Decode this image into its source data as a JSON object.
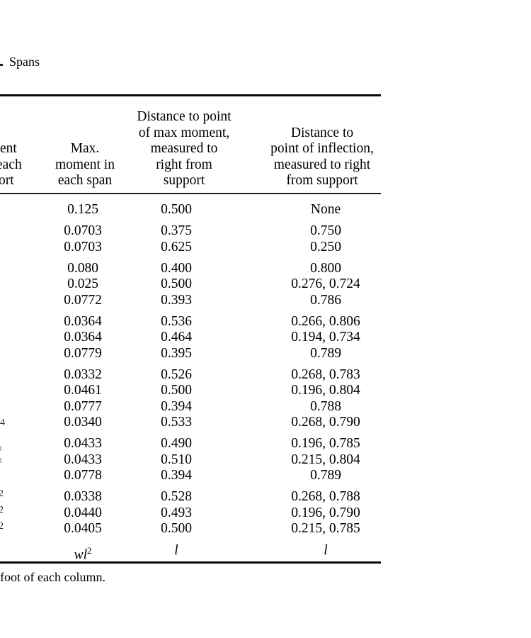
{
  "page": {
    "title_fragment": "Spans",
    "footnote_fragment": "foot of each column."
  },
  "table": {
    "header": {
      "col1_clipped_lines": [
        "ent",
        "each",
        "ort"
      ],
      "col2_lines": [
        "Max.",
        "moment in",
        "each span"
      ],
      "col3_lines": [
        "Distance to point",
        "of max moment,",
        "measured to",
        "right from",
        "support"
      ],
      "col4_lines": [
        "Distance to",
        "point of inflection,",
        "measured to right",
        "from support"
      ]
    },
    "groups": [
      [
        [
          "0.125",
          "0.500",
          "None"
        ]
      ],
      [
        [
          "0.0703",
          "0.375",
          "0.750"
        ],
        [
          "0.0703",
          "0.625",
          "0.250"
        ]
      ],
      [
        [
          "0.080",
          "0.400",
          "0.800"
        ],
        [
          "0.025",
          "0.500",
          "0.276, 0.724"
        ],
        [
          "0.0772",
          "0.393",
          "0.786"
        ]
      ],
      [
        [
          "0.0364",
          "0.536",
          "0.266, 0.806"
        ],
        [
          "0.0364",
          "0.464",
          "0.194, 0.734"
        ],
        [
          "0.0779",
          "0.395",
          "0.789"
        ]
      ],
      [
        [
          "0.0332",
          "0.526",
          "0.268, 0.783"
        ],
        [
          "0.0461",
          "0.500",
          "0.196, 0.804"
        ],
        [
          "0.0777",
          "0.394",
          "0.788"
        ],
        [
          "0.0340",
          "0.533",
          "0.268, 0.790"
        ]
      ],
      [
        [
          "0.0433",
          "0.490",
          "0.196, 0.785"
        ],
        [
          "0.0433",
          "0.510",
          "0.215, 0.804"
        ],
        [
          "0.0778",
          "0.394",
          "0.789"
        ]
      ],
      [
        [
          "0.0338",
          "0.528",
          "0.268, 0.788"
        ],
        [
          "0.0440",
          "0.493",
          "0.196, 0.790"
        ],
        [
          "0.0405",
          "0.500",
          "0.215, 0.785"
        ]
      ]
    ],
    "factor_row": {
      "max_moment_base": "wl",
      "max_moment_exp": "2",
      "dist_max_moment": "l",
      "dist_inflection": "l"
    },
    "left_margin_fragments": [
      "4",
      "2",
      "2",
      "2"
    ]
  }
}
